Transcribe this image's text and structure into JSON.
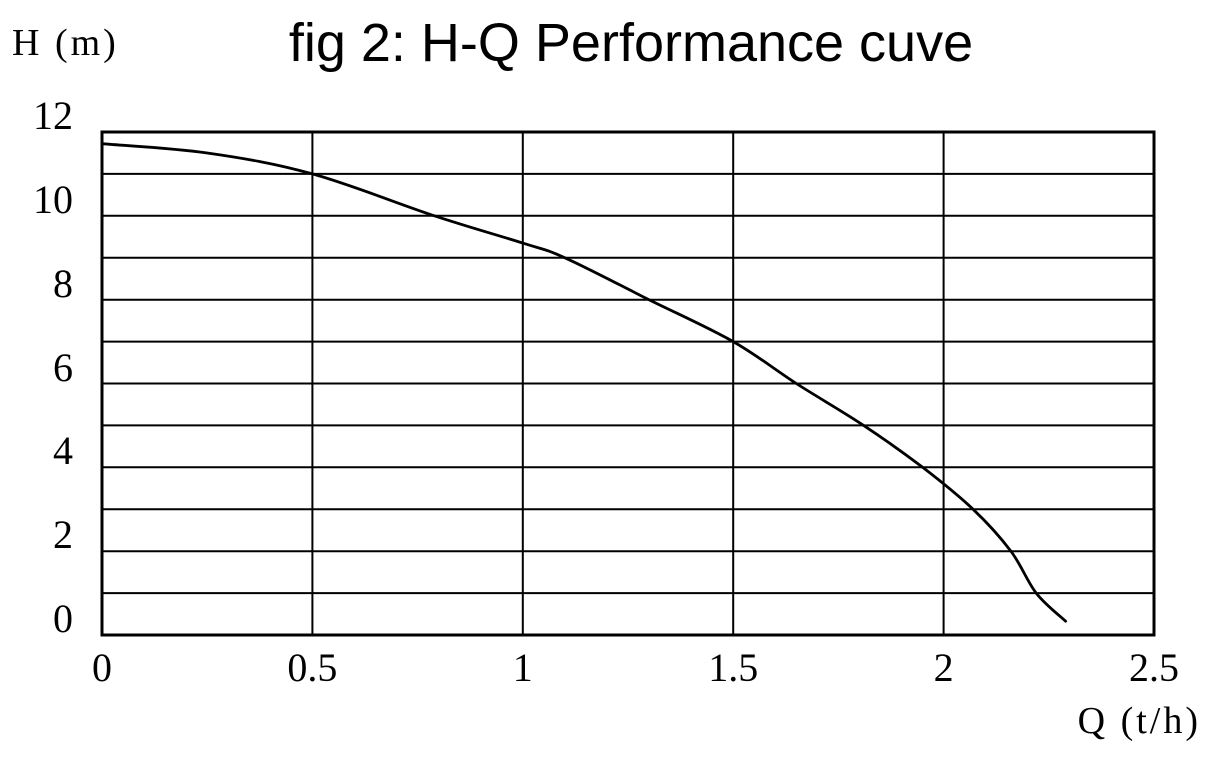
{
  "chart_data": {
    "type": "line",
    "title": "fig 2: H-Q Performance cuve",
    "xlabel": "Q (t/h)",
    "ylabel": "H (m)",
    "xlim": [
      0,
      2.5
    ],
    "ylim": [
      0,
      12
    ],
    "x_ticks": [
      0,
      0.5,
      1,
      1.5,
      2,
      2.5
    ],
    "x_tick_labels": [
      "0",
      "0.5",
      "1",
      "1.5",
      "2",
      "2.5"
    ],
    "y_ticks": [
      0,
      2,
      4,
      6,
      8,
      10,
      12
    ],
    "y_tick_labels": [
      "0",
      "2",
      "4",
      "6",
      "8",
      "10",
      "12"
    ],
    "x_grid_step": 0.5,
    "y_grid_step": 1,
    "grid": true,
    "legend": false,
    "series": [
      {
        "name": "H-Q performance curve",
        "points": [
          [
            0.0,
            11.72
          ],
          [
            0.25,
            11.5
          ],
          [
            0.5,
            11.0
          ],
          [
            0.79,
            10.0
          ],
          [
            1.0,
            9.35
          ],
          [
            1.1,
            9.0
          ],
          [
            1.3,
            8.0
          ],
          [
            1.5,
            7.0
          ],
          [
            1.65,
            6.0
          ],
          [
            1.81,
            5.0
          ],
          [
            1.95,
            4.0
          ],
          [
            2.07,
            3.0
          ],
          [
            2.16,
            2.0
          ],
          [
            2.22,
            1.0
          ],
          [
            2.29,
            0.33
          ]
        ]
      }
    ],
    "colors": {
      "line": "#000000",
      "grid": "#000000",
      "border": "#000000",
      "background": "#ffffff",
      "text": "#000000"
    }
  }
}
